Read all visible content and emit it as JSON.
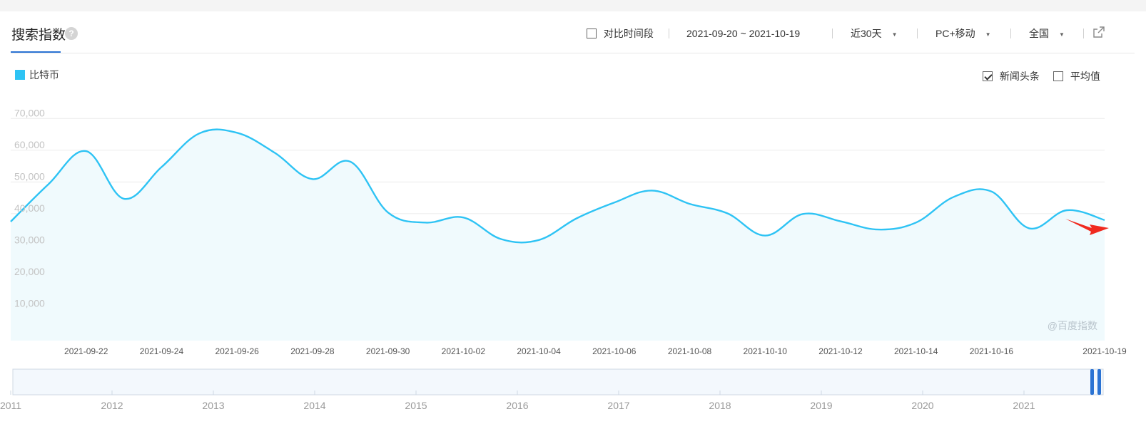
{
  "header": {
    "title": "搜索指数",
    "help": "?",
    "compare_label": "对比时间段",
    "date_range": "2021-09-20 ~ 2021-10-19",
    "period": "近30天",
    "device": "PC+移动",
    "region": "全国"
  },
  "options": {
    "news_label": "新闻头条",
    "avg_label": "平均值"
  },
  "watermark": "@百度指数",
  "colors": {
    "line": "#2ec3f4",
    "fill": "#f0fafd",
    "arrow": "#f0291e",
    "accent": "#2b73d3"
  },
  "chart_data": {
    "type": "area",
    "title": "",
    "xlabel": "",
    "ylabel": "",
    "legend": {
      "entries": [
        "比特币"
      ],
      "placement": "top-left"
    },
    "ylim": [
      0,
      75000
    ],
    "yticks": [
      10000,
      20000,
      30000,
      40000,
      50000,
      60000,
      70000
    ],
    "ytick_labels": [
      "10,000",
      "20,000",
      "30,000",
      "40,000",
      "50,000",
      "60,000",
      "70,000"
    ],
    "grid": true,
    "x_tick_labels": [
      "2021-09-22",
      "2021-09-24",
      "2021-09-26",
      "2021-09-28",
      "2021-09-30",
      "2021-10-02",
      "2021-10-04",
      "2021-10-06",
      "2021-10-08",
      "2021-10-10",
      "2021-10-12",
      "2021-10-14",
      "2021-10-16",
      "2021-10-19"
    ],
    "series": [
      {
        "name": "比特币",
        "x": [
          "2021-09-20",
          "2021-09-21",
          "2021-09-22",
          "2021-09-23",
          "2021-09-24",
          "2021-09-25",
          "2021-09-26",
          "2021-09-27",
          "2021-09-28",
          "2021-09-29",
          "2021-09-30",
          "2021-10-01",
          "2021-10-02",
          "2021-10-03",
          "2021-10-04",
          "2021-10-05",
          "2021-10-06",
          "2021-10-07",
          "2021-10-08",
          "2021-10-09",
          "2021-10-10",
          "2021-10-11",
          "2021-10-12",
          "2021-10-13",
          "2021-10-14",
          "2021-10-15",
          "2021-10-16",
          "2021-10-17",
          "2021-10-18",
          "2021-10-19"
        ],
        "values": [
          37500,
          49300,
          59700,
          44700,
          54700,
          65300,
          65500,
          59200,
          50900,
          56400,
          40400,
          37200,
          38800,
          32000,
          31700,
          38500,
          43500,
          47300,
          43100,
          40100,
          33100,
          39900,
          37600,
          35000,
          37200,
          45300,
          47000,
          35400,
          41100,
          38000
        ]
      }
    ],
    "navigator": {
      "x_labels": [
        "2011",
        "2012",
        "2013",
        "2014",
        "2015",
        "2016",
        "2017",
        "2018",
        "2019",
        "2020",
        "2021"
      ]
    }
  }
}
